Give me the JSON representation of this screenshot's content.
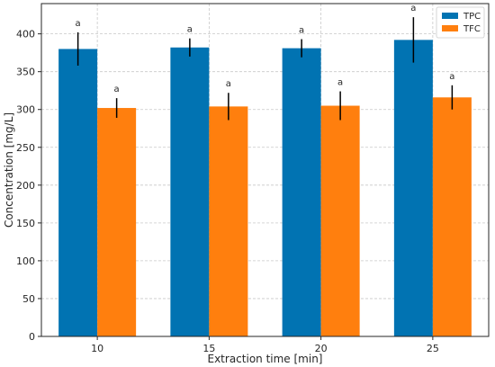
{
  "chart_data": {
    "type": "bar",
    "title": "",
    "xlabel": "Extraction time [min]",
    "ylabel": "Concentration [mg/L]",
    "categories": [
      "10",
      "15",
      "20",
      "25"
    ],
    "ylim": [
      0,
      440
    ],
    "yticks": [
      0,
      50,
      100,
      150,
      200,
      250,
      300,
      350,
      400
    ],
    "grid": true,
    "legend_position": "top-right",
    "series": [
      {
        "name": "TPC",
        "color": "#0173b2",
        "values": [
          380,
          382,
          381,
          392
        ],
        "errors": [
          22,
          12,
          12,
          30
        ],
        "labels": [
          "a",
          "a",
          "a",
          "a"
        ]
      },
      {
        "name": "TFC",
        "color": "#ff7f0e",
        "values": [
          302,
          304,
          305,
          316
        ],
        "errors": [
          13,
          18,
          19,
          16
        ],
        "labels": [
          "a",
          "a",
          "a",
          "a"
        ]
      }
    ]
  }
}
